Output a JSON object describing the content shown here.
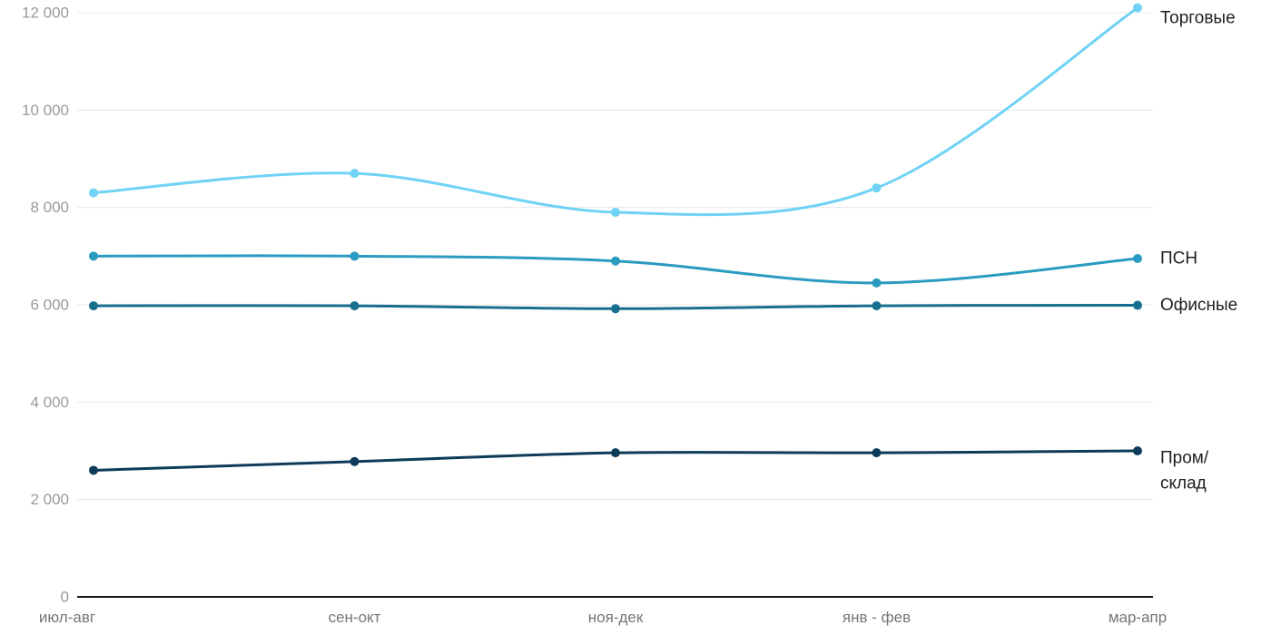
{
  "chart_data": {
    "type": "line",
    "title": "",
    "xlabel": "",
    "ylabel": "",
    "ylim": [
      0,
      12000
    ],
    "grid": true,
    "legend_position": "right-of-line-ends",
    "categories": [
      "июл-авг",
      "сен-окт",
      "ноя-дек",
      "янв - фев",
      "мар-апр"
    ],
    "yticks": [
      {
        "value": 0,
        "label": "0"
      },
      {
        "value": 2000,
        "label": "2 000"
      },
      {
        "value": 4000,
        "label": "4 000"
      },
      {
        "value": 6000,
        "label": "6 000"
      },
      {
        "value": 8000,
        "label": "8 000"
      },
      {
        "value": 10000,
        "label": "10 000"
      },
      {
        "value": 12000,
        "label": "12 000"
      }
    ],
    "series": [
      {
        "id": "torgovye",
        "label": "Торговые",
        "label_lines": [
          "Торговые"
        ],
        "color": "#70d2f5",
        "values": [
          8300,
          8700,
          7900,
          8400,
          12100
        ]
      },
      {
        "id": "psn",
        "label": "ПСН",
        "label_lines": [
          "ПСН"
        ],
        "color": "#2a9bc1",
        "values": [
          7000,
          7000,
          6900,
          6450,
          6950
        ]
      },
      {
        "id": "ofisnye",
        "label": "Офисные",
        "label_lines": [
          "Офисные"
        ],
        "color": "#176e8e",
        "values": [
          5980,
          5980,
          5920,
          5980,
          5990
        ]
      },
      {
        "id": "prom-sklad",
        "label": "Пром/склад",
        "label_lines": [
          "Пром/",
          "склад"
        ],
        "color": "#0d3b5a",
        "values": [
          2600,
          2780,
          2960,
          2960,
          3000
        ]
      }
    ],
    "colors": {
      "gridline": "#e8e8e8",
      "axis_line": "#1a1a1a",
      "ytick_text": "#9a9a9a",
      "xtick_text": "#757575",
      "series_label_text": "#1f1f1f",
      "background": "#ffffff"
    }
  }
}
